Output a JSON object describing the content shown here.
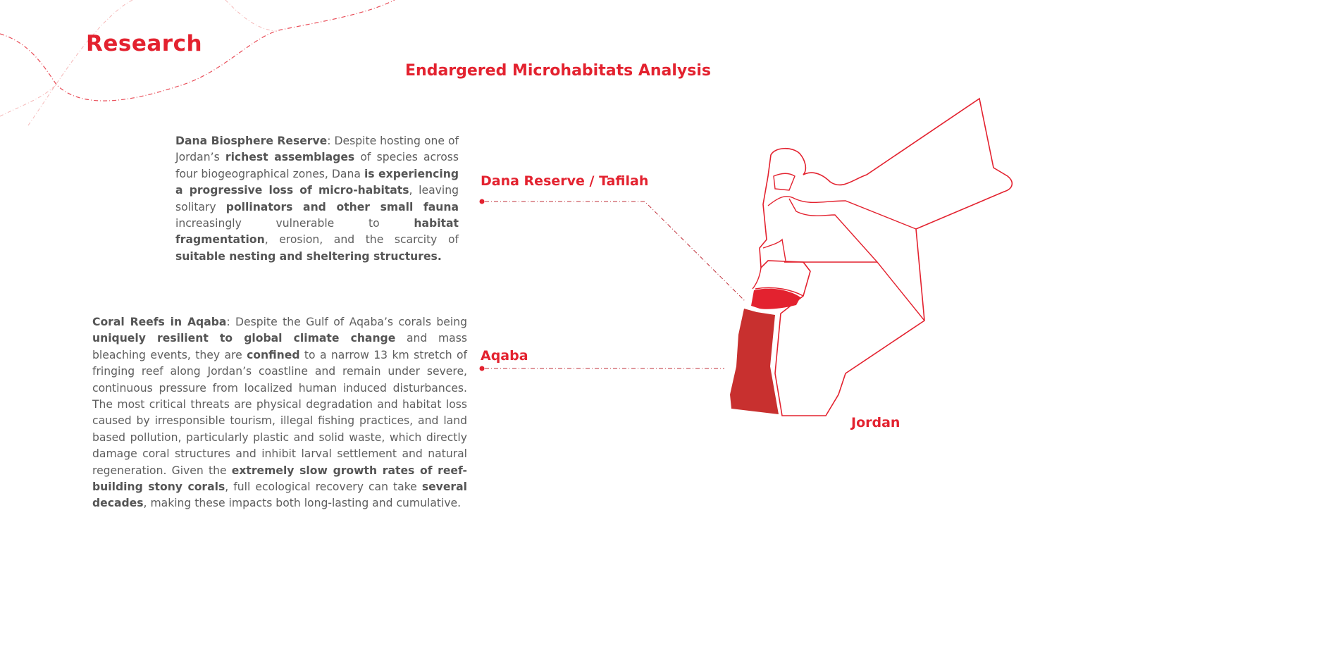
{
  "header": {
    "title": "Research",
    "subtitle": "Endargered Microhabitats Analysis"
  },
  "paragraphs": [
    {
      "segments": [
        {
          "text": "Dana Biosphere Reserve",
          "bold": true
        },
        {
          "text": ": Despite hosting one of Jordan’s ",
          "bold": false
        },
        {
          "text": "richest assemblages",
          "bold": true
        },
        {
          "text": " of species across four biogeographical zones, Dana ",
          "bold": false
        },
        {
          "text": "is experiencing a progressive loss of micro-habitats",
          "bold": true
        },
        {
          "text": ", leaving solitary ",
          "bold": false
        },
        {
          "text": "pollinators and other small fauna",
          "bold": true
        },
        {
          "text": " increasingly vulnerable to ",
          "bold": false
        },
        {
          "text": "habitat fragmentation",
          "bold": true
        },
        {
          "text": ", erosion, and the scarcity of ",
          "bold": false
        },
        {
          "text": "suitable nesting and sheltering structures.",
          "bold": true
        }
      ]
    },
    {
      "segments": [
        {
          "text": "Coral Reefs in Aqaba",
          "bold": true
        },
        {
          "text": ": Despite the Gulf of Aqaba’s corals being ",
          "bold": false
        },
        {
          "text": "uniquely resilient to global climate change",
          "bold": true
        },
        {
          "text": " and mass bleaching events, they are ",
          "bold": false
        },
        {
          "text": "confined",
          "bold": true
        },
        {
          "text": " to a narrow 13 km stretch of fringing reef along Jordan’s coastline and remain under severe, continuous pressure from localized human induced disturbances. The most critical threats are physical degradation and habitat loss caused by irresponsible tourism, illegal fishing practices, and land based pollution, particularly plastic and solid waste, which directly damage coral structures and inhibit larval settlement and natural regeneration. Given the ",
          "bold": false
        },
        {
          "text": "extremely slow growth rates of reef-building stony corals",
          "bold": true
        },
        {
          "text": ", full ecological recovery can take ",
          "bold": false
        },
        {
          "text": "several decades",
          "bold": true
        },
        {
          "text": ", making these impacts both long-lasting and cumulative.",
          "bold": false
        }
      ]
    }
  ],
  "map": {
    "labels": {
      "dana": "Dana Reserve / Tafilah",
      "aqaba": "Aqaba",
      "country": "Jordan"
    },
    "colors": {
      "accent": "#e3222f",
      "tafilah_fill": "#e3222f",
      "aqaba_fill": "#c8302f",
      "text": "#5e5e5e"
    }
  }
}
